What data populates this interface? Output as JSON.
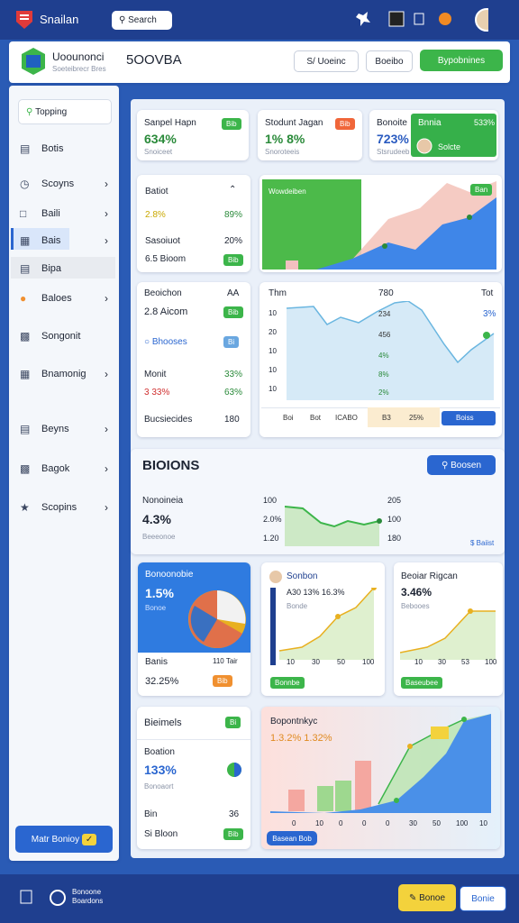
{
  "topbar": {
    "brand": "Snailan",
    "search": "Search"
  },
  "header": {
    "title": "Uoounonci",
    "subtitle": "Soeteibrecr Bres",
    "code": "5OOVBA",
    "buttons": [
      "S/ Uoeinc",
      "Boeibo",
      "Bypobnines"
    ]
  },
  "sidebar": {
    "search": "Topping",
    "items": [
      "Botis",
      "Scoyns",
      "Baili",
      "Bais",
      "Bipa",
      "Baloes",
      "Songonit",
      "Bnamonig",
      "Beyns",
      "Bagok",
      "Scopins"
    ],
    "button": "Matr Bonioy"
  },
  "stats": [
    {
      "title": "Sanpel Hapn",
      "badge": "Bib",
      "value": "634%",
      "note": "Snoiceet"
    },
    {
      "title": "Stodunt Jagan",
      "badge": "Bib",
      "value": "1% 8%",
      "note": "Snoroteeis"
    },
    {
      "title": "Bonoite",
      "highlight": "Bnnia",
      "badge": "533%",
      "value": "723%",
      "note": "Solcte",
      "caption": "Stsrudeeb"
    }
  ],
  "batiot": {
    "title": "Batiot",
    "rows": [
      [
        "2.8%",
        "89%"
      ],
      [
        "Sasoiuot",
        "20%"
      ],
      [
        "6.5 Bioom",
        "Bib"
      ]
    ]
  },
  "area_card": {
    "label": "Wowdeiben",
    "badge": "Ban"
  },
  "beoichon": {
    "title": "Beoichon",
    "icon": "AA",
    "rows": [
      [
        "2.8 Aicom",
        "Bib"
      ],
      [
        "Bhooses",
        "Bi"
      ],
      [
        "Monit",
        "33%"
      ],
      [
        "3 33%",
        "63%"
      ],
      [
        "Bucsiecides",
        "180"
      ]
    ]
  },
  "line_card": {
    "title": "Thm",
    "head": [
      "780",
      "Tot"
    ],
    "axis": [
      "10",
      "20",
      "10",
      "10",
      "10"
    ],
    "points": [
      "234",
      "456",
      "4%",
      "8%",
      "2%"
    ],
    "side": "3%",
    "tabs": [
      "Boi",
      "Bot",
      "ICABO",
      "B3",
      "25%",
      "Boiss"
    ]
  },
  "section": {
    "title": "BIOIONS",
    "button": "Boosen",
    "name": "Nonoineia",
    "value": "4.3%",
    "note": "Beeeonoe",
    "left": [
      "100",
      "2.0%",
      "1.20"
    ],
    "right": [
      "205",
      "100",
      "180"
    ],
    "footer": "$ Baiist"
  },
  "tiles": [
    {
      "title": "Bonoonobie",
      "value": "1.5%",
      "note": "Bonoe",
      "label": "Banis",
      "extra": "110 Tair",
      "total": "32.25%",
      "badge": "Bib"
    },
    {
      "title": "Sonbon",
      "value": "A30 13% 16.3%",
      "note": "Bonde",
      "axis": [
        "10",
        "30",
        "50",
        "100"
      ],
      "badge": "Bonnbe"
    },
    {
      "title": "Beoiar Rigcan",
      "value": "3.46%",
      "note": "Bebooes",
      "axis": [
        "10",
        "30",
        "53",
        "100"
      ],
      "badge": "Baseubee"
    }
  ],
  "bieimels": {
    "title": "Bieimels",
    "badge": "Bi",
    "name": "Boation",
    "value": "133%",
    "note": "Bonoaort",
    "row": [
      "Bin",
      "36"
    ],
    "foot": [
      "Si Bloon",
      "Bib"
    ]
  },
  "combo": {
    "title": "Bopontnkyc",
    "value": "1.3.2% 1.32%",
    "axis": [
      "0",
      "10",
      "0",
      "0",
      "0",
      "30",
      "50",
      "100",
      "10"
    ],
    "button": "Basean Bob"
  },
  "footer": {
    "text": [
      "Bonoone",
      "Boardons"
    ],
    "buttons": [
      "Bonoe",
      "Bonie"
    ]
  }
}
